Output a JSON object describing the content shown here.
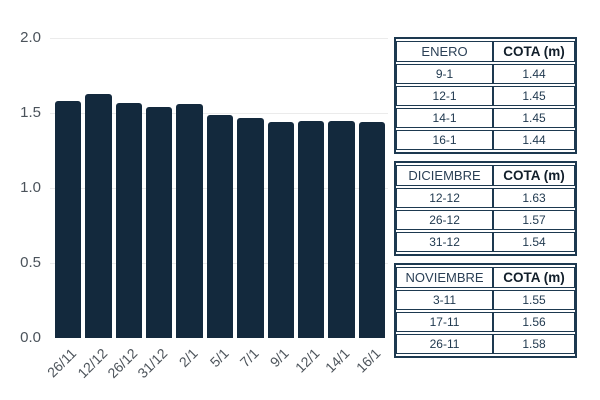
{
  "chart_data": {
    "type": "bar",
    "title": "",
    "xlabel": "",
    "ylabel": "",
    "categories": [
      "26/11",
      "12/12",
      "26/12",
      "31/12",
      "2/1",
      "5/1",
      "7/1",
      "9/1",
      "12/1",
      "14/1",
      "16/1"
    ],
    "values": [
      1.58,
      1.63,
      1.57,
      1.54,
      1.56,
      1.49,
      1.47,
      1.44,
      1.45,
      1.45,
      1.44
    ],
    "ylim": [
      0,
      2
    ],
    "yticks": [
      0.0,
      0.5,
      1.0,
      1.5,
      2.0
    ],
    "grid": true,
    "legend": false,
    "bar_color": "#13293d",
    "gridline_color": "#ebebeb",
    "tick_label_color": "#4d545b"
  },
  "tables": [
    {
      "month": "ENERO",
      "value_header": "COTA (m)",
      "rows": [
        {
          "date": "9-1",
          "value": "1.44"
        },
        {
          "date": "12-1",
          "value": "1.45"
        },
        {
          "date": "14-1",
          "value": "1.45"
        },
        {
          "date": "16-1",
          "value": "1.44"
        }
      ]
    },
    {
      "month": "DICIEMBRE",
      "value_header": "COTA (m)",
      "rows": [
        {
          "date": "12-12",
          "value": "1.63"
        },
        {
          "date": "26-12",
          "value": "1.57"
        },
        {
          "date": "31-12",
          "value": "1.54"
        }
      ]
    },
    {
      "month": "NOVIEMBRE",
      "value_header": "COTA (m)",
      "rows": [
        {
          "date": "3-11",
          "value": "1.55"
        },
        {
          "date": "17-11",
          "value": "1.56"
        },
        {
          "date": "26-11",
          "value": "1.58"
        }
      ]
    }
  ]
}
